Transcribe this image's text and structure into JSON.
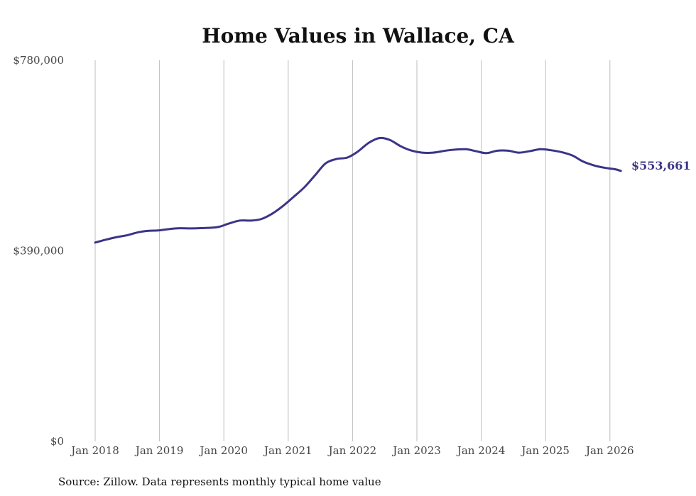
{
  "chart_data": {
    "type": "line",
    "title": "Home Values in Wallace, CA",
    "xlabel": "",
    "ylabel": "",
    "ylim": [
      0,
      780000
    ],
    "y_ticks": [
      {
        "value": 0,
        "label": "$0"
      },
      {
        "value": 390000,
        "label": "$390,000"
      },
      {
        "value": 780000,
        "label": "$780,000"
      }
    ],
    "x_ticks": [
      {
        "value": 2018,
        "label": "Jan 2018"
      },
      {
        "value": 2019,
        "label": "Jan 2019"
      },
      {
        "value": 2020,
        "label": "Jan 2020"
      },
      {
        "value": 2021,
        "label": "Jan 2021"
      },
      {
        "value": 2022,
        "label": "Jan 2022"
      },
      {
        "value": 2023,
        "label": "Jan 2023"
      },
      {
        "value": 2024,
        "label": "Jan 2024"
      },
      {
        "value": 2025,
        "label": "Jan 2025"
      },
      {
        "value": 2026,
        "label": "Jan 2026"
      }
    ],
    "xlim": [
      2018,
      2026.2
    ],
    "grid": "vertical",
    "series": [
      {
        "name": "Typical home value",
        "color": "#3b3488",
        "x": [
          2018.0,
          2018.17,
          2018.33,
          2018.5,
          2018.67,
          2018.83,
          2019.0,
          2019.25,
          2019.5,
          2019.75,
          2019.92,
          2020.08,
          2020.25,
          2020.42,
          2020.58,
          2020.75,
          2020.92,
          2021.08,
          2021.25,
          2021.42,
          2021.58,
          2021.75,
          2021.92,
          2022.08,
          2022.25,
          2022.42,
          2022.58,
          2022.75,
          2022.92,
          2023.08,
          2023.25,
          2023.5,
          2023.75,
          2023.92,
          2024.08,
          2024.25,
          2024.42,
          2024.58,
          2024.75,
          2024.92,
          2025.08,
          2025.25,
          2025.42,
          2025.58,
          2025.75,
          2025.92,
          2026.08,
          2026.17
        ],
        "values": [
          407000,
          413000,
          418000,
          422000,
          428000,
          431000,
          432000,
          436000,
          436000,
          437000,
          439000,
          446000,
          452000,
          452000,
          455000,
          466000,
          482000,
          500000,
          520000,
          545000,
          569000,
          578000,
          581000,
          593000,
          611000,
          621000,
          617000,
          604000,
          595000,
          591000,
          591000,
          596000,
          598000,
          594000,
          590000,
          595000,
          595000,
          591000,
          594000,
          598000,
          596000,
          592000,
          585000,
          573000,
          565000,
          560000,
          557000,
          553661
        ]
      }
    ],
    "end_label": "$553,661",
    "source_note": "Source: Zillow. Data represents monthly typical home value"
  }
}
